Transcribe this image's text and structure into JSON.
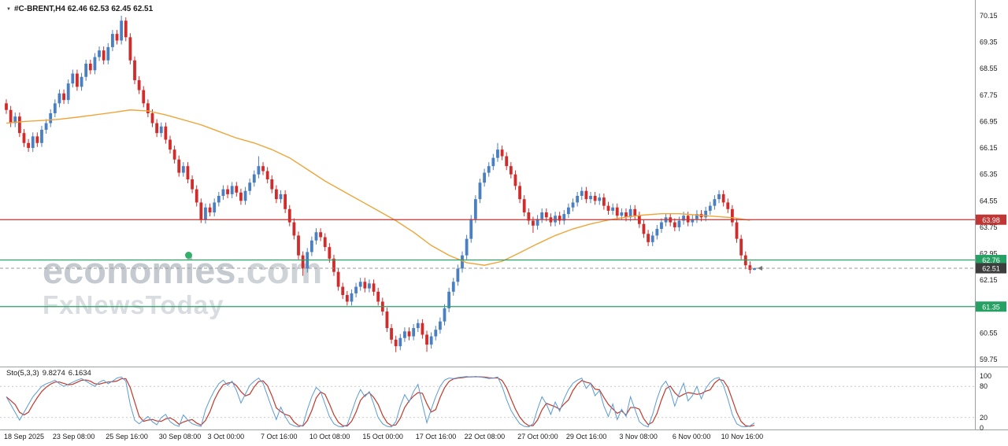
{
  "header": {
    "dropdown_icon": "▼",
    "symbol_line": "#C-BRENT,H4 62.46 62.53 62.45 62.51"
  },
  "watermark": {
    "pre": "econom",
    "i_char": "i",
    "post": "es",
    "tld": ".com",
    "line2": "FxNewsToday",
    "full_text": "economies.com FxNewsToday"
  },
  "indicator": {
    "label": "Sto(5,3,3)",
    "k_value": "9.8274",
    "d_value": "6.1634",
    "axis_labels": [
      "100",
      "80",
      "20",
      "0"
    ],
    "levels": [
      80,
      20
    ]
  },
  "price_axis": {
    "tick_labels": [
      "70.15",
      "69.35",
      "68.55",
      "67.75",
      "66.95",
      "66.15",
      "65.35",
      "64.55",
      "63.75",
      "62.95",
      "62.15",
      "61.35",
      "60.55",
      "59.75"
    ]
  },
  "price_tags": [
    {
      "label": "63.98",
      "price": 63.98,
      "color": "#c13535",
      "type": "hline-solid"
    },
    {
      "label": "62.76",
      "price": 62.76,
      "color": "#27a163",
      "type": "hline-solid"
    },
    {
      "label": "62.51",
      "price": 62.51,
      "color": "#3d3d3d",
      "type": "current-dashed"
    },
    {
      "label": "61.35",
      "price": 61.35,
      "color": "#27a163",
      "type": "hline-solid"
    }
  ],
  "time_axis": {
    "labels": [
      {
        "text": "18 Sep 2025",
        "bar": 0
      },
      {
        "text": "23 Sep 08:00",
        "bar": 11
      },
      {
        "text": "25 Sep 16:00",
        "bar": 23
      },
      {
        "text": "30 Sep 08:00",
        "bar": 35
      },
      {
        "text": "3 Oct 00:00",
        "bar": 46
      },
      {
        "text": "7 Oct 16:00",
        "bar": 58
      },
      {
        "text": "10 Oct 08:00",
        "bar": 69
      },
      {
        "text": "15 Oct 00:00",
        "bar": 81
      },
      {
        "text": "17 Oct 16:00",
        "bar": 93
      },
      {
        "text": "22 Oct 08:00",
        "bar": 104
      },
      {
        "text": "27 Oct 00:00",
        "bar": 116
      },
      {
        "text": "29 Oct 16:00",
        "bar": 127
      },
      {
        "text": "3 Nov 08:00",
        "bar": 139
      },
      {
        "text": "6 Nov 00:00",
        "bar": 151
      },
      {
        "text": "10 Nov 16:00",
        "bar": 162
      }
    ]
  },
  "colors": {
    "candle_up": "#4a7fc1",
    "candle_down": "#d22b2b",
    "ma": "#efa53a",
    "sto_k": "#5b9bd5",
    "sto_d": "#c0392b",
    "hline_red": "#c13535",
    "hline_green": "#27a163",
    "current_tag": "#3d3d3d",
    "grid_dash": "#c9c9c9",
    "separator": "#9aa0a5",
    "axis_text": "#1a1a1a"
  },
  "chart_data": {
    "type": "candlestick",
    "symbol": "#C-BRENT",
    "timeframe": "H4",
    "title": "#C-BRENT,H4 62.46 62.53 62.45 62.51",
    "ylim": [
      59.75,
      70.15
    ],
    "x_first": "18 Sep 2025",
    "x_last": "10 Nov 16:00",
    "legend_position": "none",
    "grid": "minimal",
    "ohlc": [
      [
        67.5,
        67.62,
        67.18,
        67.3
      ],
      [
        67.3,
        67.42,
        66.78,
        66.9
      ],
      [
        66.9,
        67.22,
        66.78,
        67.1
      ],
      [
        67.1,
        67.22,
        66.48,
        66.6
      ],
      [
        66.6,
        66.72,
        66.18,
        66.3
      ],
      [
        66.3,
        66.42,
        66.03,
        66.15
      ],
      [
        66.15,
        66.62,
        66.03,
        66.5
      ],
      [
        66.5,
        66.62,
        66.18,
        66.3
      ],
      [
        66.3,
        66.82,
        66.18,
        66.7
      ],
      [
        66.7,
        67.02,
        66.58,
        66.9
      ],
      [
        66.9,
        67.32,
        66.78,
        67.2
      ],
      [
        67.2,
        67.62,
        67.08,
        67.5
      ],
      [
        67.5,
        67.92,
        67.38,
        67.8
      ],
      [
        67.8,
        67.92,
        67.48,
        67.6
      ],
      [
        67.6,
        68.22,
        67.48,
        68.1
      ],
      [
        68.1,
        68.52,
        67.98,
        68.4
      ],
      [
        68.4,
        68.52,
        67.88,
        68.0
      ],
      [
        68.0,
        68.42,
        67.88,
        68.3
      ],
      [
        68.3,
        68.82,
        68.18,
        68.7
      ],
      [
        68.7,
        68.82,
        68.38,
        68.5
      ],
      [
        68.5,
        69.02,
        68.38,
        68.9
      ],
      [
        68.9,
        69.22,
        68.78,
        69.1
      ],
      [
        69.1,
        69.22,
        68.68,
        68.8
      ],
      [
        68.8,
        69.32,
        68.68,
        69.2
      ],
      [
        69.2,
        69.72,
        69.08,
        69.6
      ],
      [
        69.6,
        69.72,
        69.28,
        69.4
      ],
      [
        69.4,
        70.15,
        69.28,
        70.0
      ],
      [
        70.0,
        70.1,
        69.38,
        69.5
      ],
      [
        69.5,
        69.62,
        68.68,
        68.8
      ],
      [
        68.8,
        68.92,
        68.08,
        68.2
      ],
      [
        68.2,
        68.32,
        67.78,
        67.9
      ],
      [
        67.9,
        68.02,
        67.38,
        67.5
      ],
      [
        67.5,
        67.62,
        67.08,
        67.2
      ],
      [
        67.2,
        67.32,
        66.78,
        66.9
      ],
      [
        66.9,
        67.02,
        66.48,
        66.6
      ],
      [
        66.6,
        66.92,
        66.48,
        66.8
      ],
      [
        66.8,
        66.92,
        66.28,
        66.4
      ],
      [
        66.4,
        66.52,
        65.98,
        66.1
      ],
      [
        66.1,
        66.22,
        65.68,
        65.8
      ],
      [
        65.8,
        65.92,
        65.28,
        65.4
      ],
      [
        65.4,
        65.72,
        65.28,
        65.6
      ],
      [
        65.6,
        65.72,
        65.08,
        65.2
      ],
      [
        65.2,
        65.32,
        64.78,
        64.9
      ],
      [
        64.9,
        65.02,
        64.38,
        64.5
      ],
      [
        64.5,
        64.62,
        63.88,
        63.98
      ],
      [
        63.98,
        64.47,
        63.86,
        64.35
      ],
      [
        64.35,
        64.47,
        64.08,
        64.2
      ],
      [
        64.2,
        64.62,
        64.08,
        64.5
      ],
      [
        64.5,
        64.82,
        64.38,
        64.7
      ],
      [
        64.7,
        65.02,
        64.58,
        64.9
      ],
      [
        64.9,
        65.02,
        64.63,
        64.75
      ],
      [
        64.75,
        65.12,
        64.63,
        65.0
      ],
      [
        65.0,
        65.12,
        64.68,
        64.8
      ],
      [
        64.8,
        64.92,
        64.43,
        64.55
      ],
      [
        64.55,
        64.97,
        64.43,
        64.85
      ],
      [
        64.85,
        65.22,
        64.73,
        65.1
      ],
      [
        65.1,
        65.47,
        64.98,
        65.35
      ],
      [
        65.35,
        65.9,
        65.23,
        65.6
      ],
      [
        65.6,
        65.72,
        65.33,
        65.45
      ],
      [
        65.45,
        65.57,
        65.08,
        65.2
      ],
      [
        65.2,
        65.32,
        64.78,
        64.9
      ],
      [
        64.9,
        65.02,
        64.48,
        64.6
      ],
      [
        64.6,
        64.87,
        64.48,
        64.75
      ],
      [
        64.75,
        64.87,
        64.18,
        64.3
      ],
      [
        64.3,
        64.42,
        63.78,
        63.9
      ],
      [
        63.9,
        64.02,
        63.38,
        63.5
      ],
      [
        63.5,
        63.62,
        62.78,
        62.9
      ],
      [
        62.9,
        63.02,
        62.28,
        62.5
      ],
      [
        62.5,
        63.12,
        62.38,
        63.0
      ],
      [
        63.0,
        63.47,
        62.88,
        63.35
      ],
      [
        63.35,
        63.72,
        63.23,
        63.6
      ],
      [
        63.6,
        63.72,
        63.33,
        63.45
      ],
      [
        63.45,
        63.57,
        63.03,
        63.15
      ],
      [
        63.15,
        63.27,
        62.68,
        62.8
      ],
      [
        62.8,
        62.92,
        62.28,
        62.4
      ],
      [
        62.4,
        62.52,
        61.83,
        61.95
      ],
      [
        61.95,
        62.07,
        61.58,
        61.7
      ],
      [
        61.7,
        61.82,
        61.38,
        61.5
      ],
      [
        61.5,
        61.87,
        61.38,
        61.75
      ],
      [
        61.75,
        62.07,
        61.63,
        61.95
      ],
      [
        61.95,
        62.22,
        61.83,
        62.1
      ],
      [
        62.1,
        62.22,
        61.78,
        61.9
      ],
      [
        61.9,
        62.17,
        61.78,
        62.05
      ],
      [
        62.05,
        62.17,
        61.68,
        61.8
      ],
      [
        61.8,
        61.92,
        61.38,
        61.5
      ],
      [
        61.5,
        61.62,
        61.08,
        61.2
      ],
      [
        61.2,
        61.32,
        60.58,
        60.7
      ],
      [
        60.7,
        60.82,
        60.23,
        60.35
      ],
      [
        60.35,
        60.47,
        59.97,
        60.15
      ],
      [
        60.15,
        60.52,
        60.03,
        60.4
      ],
      [
        60.4,
        60.72,
        60.28,
        60.6
      ],
      [
        60.6,
        60.72,
        60.33,
        60.45
      ],
      [
        60.45,
        60.82,
        60.33,
        60.7
      ],
      [
        60.7,
        60.97,
        60.58,
        60.85
      ],
      [
        60.85,
        60.97,
        60.38,
        60.5
      ],
      [
        60.5,
        60.62,
        59.98,
        60.2
      ],
      [
        60.2,
        60.57,
        60.08,
        60.45
      ],
      [
        60.45,
        60.77,
        60.33,
        60.65
      ],
      [
        60.65,
        61.02,
        60.53,
        60.9
      ],
      [
        60.9,
        61.42,
        60.78,
        61.3
      ],
      [
        61.3,
        61.92,
        61.18,
        61.8
      ],
      [
        61.8,
        62.22,
        61.68,
        62.1
      ],
      [
        62.1,
        62.62,
        61.98,
        62.5
      ],
      [
        62.5,
        63.02,
        62.38,
        62.9
      ],
      [
        62.9,
        63.52,
        62.78,
        63.4
      ],
      [
        63.4,
        64.12,
        63.28,
        64.0
      ],
      [
        64.0,
        64.72,
        63.88,
        64.6
      ],
      [
        64.6,
        65.22,
        64.48,
        65.1
      ],
      [
        65.1,
        65.52,
        64.98,
        65.4
      ],
      [
        65.4,
        65.72,
        65.28,
        65.6
      ],
      [
        65.6,
        65.97,
        65.48,
        65.85
      ],
      [
        65.85,
        66.3,
        65.73,
        66.1
      ],
      [
        66.1,
        66.22,
        65.78,
        65.9
      ],
      [
        65.9,
        66.02,
        65.48,
        65.6
      ],
      [
        65.6,
        65.72,
        65.23,
        65.35
      ],
      [
        65.35,
        65.47,
        64.88,
        65.0
      ],
      [
        65.0,
        65.12,
        64.48,
        64.6
      ],
      [
        64.6,
        64.72,
        64.08,
        64.2
      ],
      [
        64.2,
        64.32,
        63.83,
        63.95
      ],
      [
        63.95,
        64.07,
        63.58,
        63.8
      ],
      [
        63.8,
        64.12,
        63.68,
        64.0
      ],
      [
        64.0,
        64.32,
        63.88,
        64.2
      ],
      [
        64.2,
        64.32,
        63.93,
        64.05
      ],
      [
        64.05,
        64.17,
        63.78,
        63.9
      ],
      [
        63.9,
        64.22,
        63.78,
        64.1
      ],
      [
        64.1,
        64.22,
        63.83,
        63.95
      ],
      [
        63.95,
        64.27,
        63.83,
        64.15
      ],
      [
        64.15,
        64.47,
        64.03,
        64.35
      ],
      [
        64.35,
        64.62,
        64.23,
        64.5
      ],
      [
        64.5,
        64.82,
        64.38,
        64.7
      ],
      [
        64.7,
        64.97,
        64.58,
        64.85
      ],
      [
        64.85,
        64.97,
        64.48,
        64.6
      ],
      [
        64.6,
        64.82,
        64.48,
        64.7
      ],
      [
        64.7,
        64.82,
        64.43,
        64.55
      ],
      [
        64.55,
        64.77,
        64.43,
        64.65
      ],
      [
        64.65,
        64.77,
        64.28,
        64.4
      ],
      [
        64.4,
        64.52,
        64.13,
        64.25
      ],
      [
        64.25,
        64.47,
        64.13,
        64.35
      ],
      [
        64.35,
        64.47,
        63.98,
        64.1
      ],
      [
        64.1,
        64.32,
        63.98,
        64.2
      ],
      [
        64.2,
        64.32,
        63.93,
        64.05
      ],
      [
        64.05,
        64.42,
        63.93,
        64.3
      ],
      [
        64.3,
        64.42,
        63.98,
        64.1
      ],
      [
        64.1,
        64.22,
        63.73,
        63.85
      ],
      [
        63.85,
        63.97,
        63.43,
        63.55
      ],
      [
        63.55,
        63.67,
        63.18,
        63.3
      ],
      [
        63.3,
        63.62,
        63.18,
        63.5
      ],
      [
        63.5,
        63.82,
        63.38,
        63.7
      ],
      [
        63.7,
        64.02,
        63.58,
        63.9
      ],
      [
        63.9,
        64.17,
        63.78,
        64.05
      ],
      [
        64.05,
        64.17,
        63.78,
        63.9
      ],
      [
        63.9,
        64.02,
        63.63,
        63.75
      ],
      [
        63.75,
        64.07,
        63.63,
        63.95
      ],
      [
        63.95,
        64.22,
        63.83,
        64.1
      ],
      [
        64.1,
        64.22,
        63.78,
        63.9
      ],
      [
        63.9,
        64.12,
        63.78,
        64.0
      ],
      [
        64.0,
        64.27,
        63.88,
        64.15
      ],
      [
        64.15,
        64.27,
        63.93,
        64.05
      ],
      [
        64.05,
        64.37,
        63.93,
        64.25
      ],
      [
        64.25,
        64.52,
        64.13,
        64.4
      ],
      [
        64.4,
        64.72,
        64.28,
        64.6
      ],
      [
        64.6,
        64.87,
        64.48,
        64.75
      ],
      [
        64.75,
        64.87,
        64.38,
        64.5
      ],
      [
        64.5,
        64.62,
        64.18,
        64.3
      ],
      [
        64.3,
        64.42,
        63.78,
        63.9
      ],
      [
        63.9,
        64.02,
        63.28,
        63.4
      ],
      [
        63.4,
        63.52,
        62.78,
        62.9
      ],
      [
        62.9,
        63.02,
        62.48,
        62.6
      ],
      [
        62.6,
        62.72,
        62.35,
        62.46
      ],
      [
        62.46,
        62.53,
        62.45,
        62.51
      ]
    ],
    "ma_points": [
      [
        0,
        66.9
      ],
      [
        4,
        66.95
      ],
      [
        8,
        66.98
      ],
      [
        12,
        67.02
      ],
      [
        16,
        67.08
      ],
      [
        20,
        67.15
      ],
      [
        24,
        67.22
      ],
      [
        28,
        67.3
      ],
      [
        32,
        67.27
      ],
      [
        36,
        67.15
      ],
      [
        40,
        67.0
      ],
      [
        44,
        66.85
      ],
      [
        48,
        66.65
      ],
      [
        52,
        66.45
      ],
      [
        56,
        66.3
      ],
      [
        60,
        66.1
      ],
      [
        64,
        65.85
      ],
      [
        68,
        65.5
      ],
      [
        72,
        65.15
      ],
      [
        76,
        64.85
      ],
      [
        80,
        64.55
      ],
      [
        84,
        64.25
      ],
      [
        88,
        63.95
      ],
      [
        92,
        63.6
      ],
      [
        96,
        63.2
      ],
      [
        100,
        62.9
      ],
      [
        104,
        62.68
      ],
      [
        108,
        62.6
      ],
      [
        112,
        62.72
      ],
      [
        116,
        62.98
      ],
      [
        120,
        63.25
      ],
      [
        124,
        63.5
      ],
      [
        128,
        63.7
      ],
      [
        132,
        63.85
      ],
      [
        136,
        63.97
      ],
      [
        140,
        64.06
      ],
      [
        144,
        64.12
      ],
      [
        148,
        64.16
      ],
      [
        152,
        64.16
      ],
      [
        156,
        64.12
      ],
      [
        160,
        64.08
      ],
      [
        164,
        64.04
      ],
      [
        168,
        63.96
      ]
    ],
    "stochastic_k": [
      60,
      45,
      30,
      15,
      30,
      45,
      60,
      70,
      80,
      85,
      88,
      92,
      85,
      80,
      84,
      88,
      92,
      95,
      90,
      85,
      80,
      88,
      92,
      85,
      90,
      96,
      98,
      90,
      45,
      15,
      8,
      15,
      22,
      12,
      6,
      20,
      26,
      12,
      6,
      3,
      25,
      15,
      8,
      5,
      3,
      35,
      55,
      72,
      85,
      92,
      82,
      90,
      72,
      48,
      65,
      82,
      90,
      96,
      86,
      62,
      38,
      16,
      40,
      22,
      8,
      4,
      2,
      5,
      35,
      60,
      78,
      70,
      46,
      22,
      8,
      3,
      2,
      6,
      30,
      55,
      74,
      60,
      70,
      46,
      20,
      8,
      3,
      2,
      12,
      42,
      64,
      50,
      70,
      84,
      46,
      10,
      36,
      60,
      80,
      92,
      96,
      95,
      97,
      98,
      99,
      98,
      99,
      98,
      97,
      95,
      96,
      98,
      80,
      55,
      34,
      20,
      8,
      3,
      2,
      8,
      36,
      60,
      46,
      26,
      50,
      32,
      56,
      74,
      86,
      92,
      96,
      76,
      86,
      62,
      72,
      42,
      22,
      46,
      16,
      36,
      22,
      60,
      36,
      12,
      5,
      2,
      26,
      56,
      80,
      90,
      72,
      42,
      66,
      86,
      52,
      62,
      80,
      56,
      76,
      88,
      95,
      97,
      82,
      56,
      26,
      8,
      3,
      2,
      4,
      9.8
    ]
  }
}
